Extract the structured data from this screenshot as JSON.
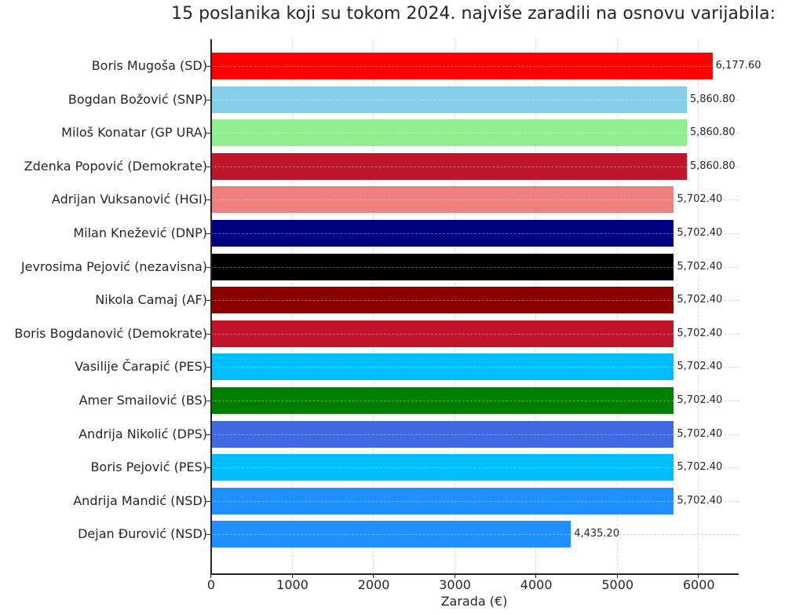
{
  "chart_data": {
    "type": "bar",
    "orientation": "horizontal",
    "title": "15 poslanika koji su tokom 2024. najviše zaradili na osnovu varijabila:",
    "xlabel": "Zarada (€)",
    "ylabel": "",
    "xlim": [
      0,
      6500
    ],
    "xticks": [
      0,
      1000,
      2000,
      3000,
      4000,
      5000,
      6000
    ],
    "grid": true,
    "legend": null,
    "categories": [
      "Boris Mugoša (SD)",
      "Bogdan Božović (SNP)",
      "Miloš Konatar (GP URA)",
      "Zdenka Popović (Demokrate)",
      "Adrijan Vuksanović (HGI)",
      "Milan Knežević (DNP)",
      "Jevrosima Pejović (nezavisna)",
      "Nikola Camaj (AF)",
      "Boris Bogdanović (Demokrate)",
      "Vasilije Čarapić (PES)",
      "Amer Smailović (BS)",
      "Andrija Nikolić (DPS)",
      "Boris Pejović (PES)",
      "Andrija Mandić (NSD)",
      "Dejan Đurović (NSD)"
    ],
    "values": [
      6177.6,
      5860.8,
      5860.8,
      5860.8,
      5702.4,
      5702.4,
      5702.4,
      5702.4,
      5702.4,
      5702.4,
      5702.4,
      5702.4,
      5702.4,
      5702.4,
      4435.2
    ],
    "value_labels": [
      "6,177.60",
      "5,860.80",
      "5,860.80",
      "5,860.80",
      "5,702.40",
      "5,702.40",
      "5,702.40",
      "5,702.40",
      "5,702.40",
      "5,702.40",
      "5,702.40",
      "5,702.40",
      "5,702.40",
      "5,702.40",
      "4,435.20"
    ],
    "colors": [
      "#ff0000",
      "#87ceeb",
      "#90ee90",
      "#c0152a",
      "#f08080",
      "#000080",
      "#000000",
      "#8b0000",
      "#c0152a",
      "#00bfff",
      "#008000",
      "#4169e1",
      "#00bfff",
      "#1e90ff",
      "#1e90ff"
    ]
  }
}
